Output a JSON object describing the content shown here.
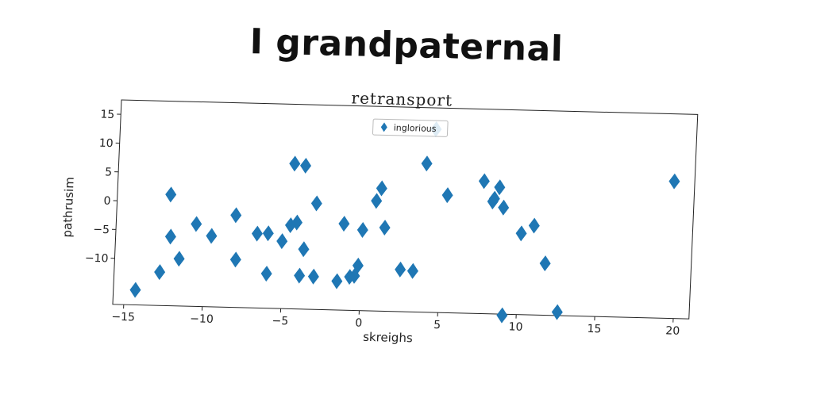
{
  "title": "I grandpaternal",
  "chart_data": {
    "type": "scatter",
    "title": "retransport",
    "xlabel": "skreighs",
    "ylabel": "pathrusim",
    "xlim": [
      -15.7,
      21.0
    ],
    "ylim": [
      -18,
      17.5
    ],
    "xticks": [
      -15,
      -10,
      -5,
      0,
      5,
      10,
      15,
      20
    ],
    "yticks": [
      15,
      10,
      5,
      0,
      -5,
      -10
    ],
    "xtick_labels": [
      "−15",
      "−10",
      "−5",
      "0",
      "5",
      "10",
      "15",
      "20"
    ],
    "ytick_labels": [
      "15",
      "10",
      "5",
      "0",
      "−5",
      "−10"
    ],
    "grid": false,
    "legend_position": "top-center",
    "series": [
      {
        "name": "inglorious",
        "color": "#1f77b4",
        "marker": "thin-diamond",
        "x": [
          -14.3,
          -12.8,
          -12.3,
          -12.2,
          -11.6,
          -10.6,
          -9.6,
          -8.1,
          -8.0,
          -6.7,
          -6.0,
          -6.0,
          -5.1,
          -4.6,
          -4.5,
          -4.2,
          -3.9,
          -3.8,
          -3.7,
          -3.0,
          -3.0,
          -1.5,
          -1.2,
          -0.7,
          -0.4,
          -0.2,
          0.0,
          0.8,
          1.1,
          1.4,
          2.5,
          3.3,
          3.9,
          4.4,
          5.3,
          7.6,
          8.2,
          8.3,
          8.6,
          8.9,
          9.1,
          10.1,
          10.9,
          11.7,
          12.6,
          19.7
        ],
        "y": [
          -15.4,
          -12.2,
          1.3,
          -6.0,
          -9.8,
          -3.7,
          -5.7,
          -2.0,
          -9.7,
          -5.1,
          -5.0,
          -12.0,
          -6.3,
          -3.5,
          7.2,
          -3.0,
          -12.2,
          6.9,
          -7.6,
          0.4,
          -12.3,
          -13.0,
          -3.0,
          -12.2,
          -12.0,
          -10.2,
          -4.0,
          1.1,
          3.3,
          -3.5,
          -10.7,
          -10.9,
          7.8,
          13.8,
          2.4,
          5.0,
          1.5,
          2.0,
          4.0,
          0.5,
          -18.2,
          -3.9,
          -2.5,
          -9.0,
          -17.4,
          5.8
        ]
      }
    ]
  }
}
